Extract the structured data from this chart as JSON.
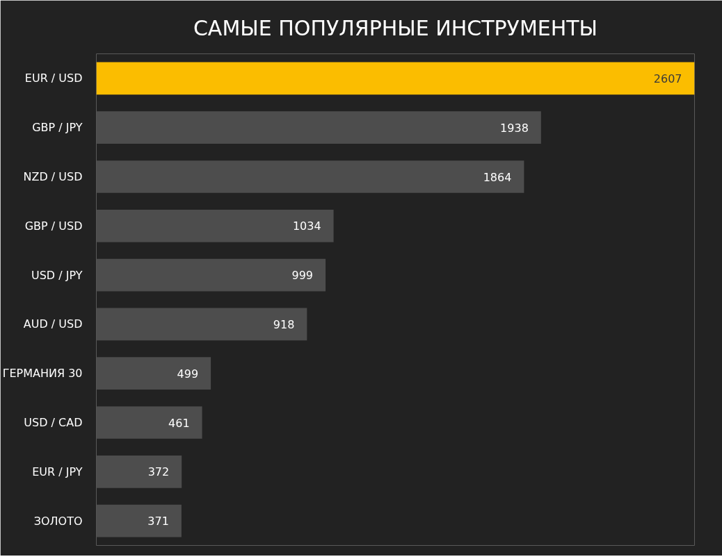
{
  "chart_data": {
    "type": "bar",
    "orientation": "horizontal",
    "title": "САМЫЕ ПОПУЛЯРНЫЕ ИНСТРУМЕНТЫ",
    "categories": [
      "EUR / USD",
      "GBP / JPY",
      "NZD / USD",
      "GBP / USD",
      "USD / JPY",
      "AUD / USD",
      "ГЕРМАНИЯ 30",
      "USD / CAD",
      "EUR / JPY",
      "ЗОЛОТО"
    ],
    "values": [
      2607,
      1938,
      1864,
      1034,
      999,
      918,
      499,
      461,
      372,
      371
    ],
    "colors": [
      "#fbbd00",
      "#4d4d4d",
      "#4d4d4d",
      "#4d4d4d",
      "#4d4d4d",
      "#4d4d4d",
      "#4d4d4d",
      "#4d4d4d",
      "#4d4d4d",
      "#4d4d4d"
    ],
    "data_labels": true
  }
}
